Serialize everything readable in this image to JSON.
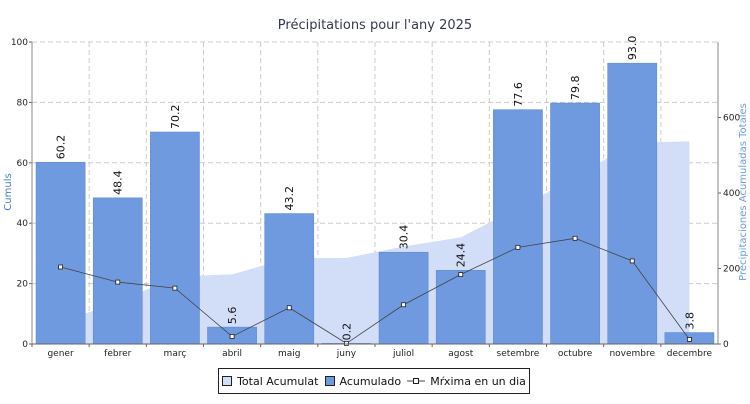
{
  "chart_data": {
    "type": "bar",
    "title": "Précipitations pour l'any 2025",
    "ylabel": "Cumuls",
    "y2label": "Precipitaciones Acumuladas Totales",
    "categories": [
      "gener",
      "febrer",
      "març",
      "abril",
      "maig",
      "juny",
      "juliol",
      "agost",
      "setembre",
      "octubre",
      "novembre",
      "decembre"
    ],
    "ylim": [
      0,
      100
    ],
    "y2lim": [
      0,
      800
    ],
    "yticks": [
      0,
      20,
      40,
      60,
      80,
      100
    ],
    "y2ticks": [
      0,
      200,
      400,
      600
    ],
    "grid": true,
    "legend_position": "bottom",
    "series": [
      {
        "name": "Total Acumulat",
        "type": "area",
        "axis": "right",
        "color": "#d2def8",
        "values": [
          60.2,
          108.6,
          178.8,
          184.4,
          227.6,
          227.8,
          258.2,
          282.6,
          360.2,
          440.0,
          533.0,
          536.8
        ]
      },
      {
        "name": "Acumulado",
        "type": "bar",
        "axis": "left",
        "color": "#6f9ae0",
        "values": [
          60.2,
          48.4,
          70.2,
          5.6,
          43.2,
          0.2,
          30.4,
          24.4,
          77.6,
          79.8,
          93.0,
          3.8
        ],
        "labels": [
          "60.2",
          "48.4",
          "70.2",
          "5.6",
          "43.2",
          "0.2",
          "30.4",
          "24.4",
          "77.6",
          "79.8",
          "93.0",
          "3.8"
        ]
      },
      {
        "name": "Mŕxima en un dia",
        "type": "line",
        "axis": "left",
        "color": "#444444",
        "values": [
          25.5,
          20.5,
          18.5,
          2.5,
          12.0,
          0.2,
          13.0,
          23.0,
          32.0,
          35.0,
          27.5,
          1.5
        ]
      }
    ]
  }
}
